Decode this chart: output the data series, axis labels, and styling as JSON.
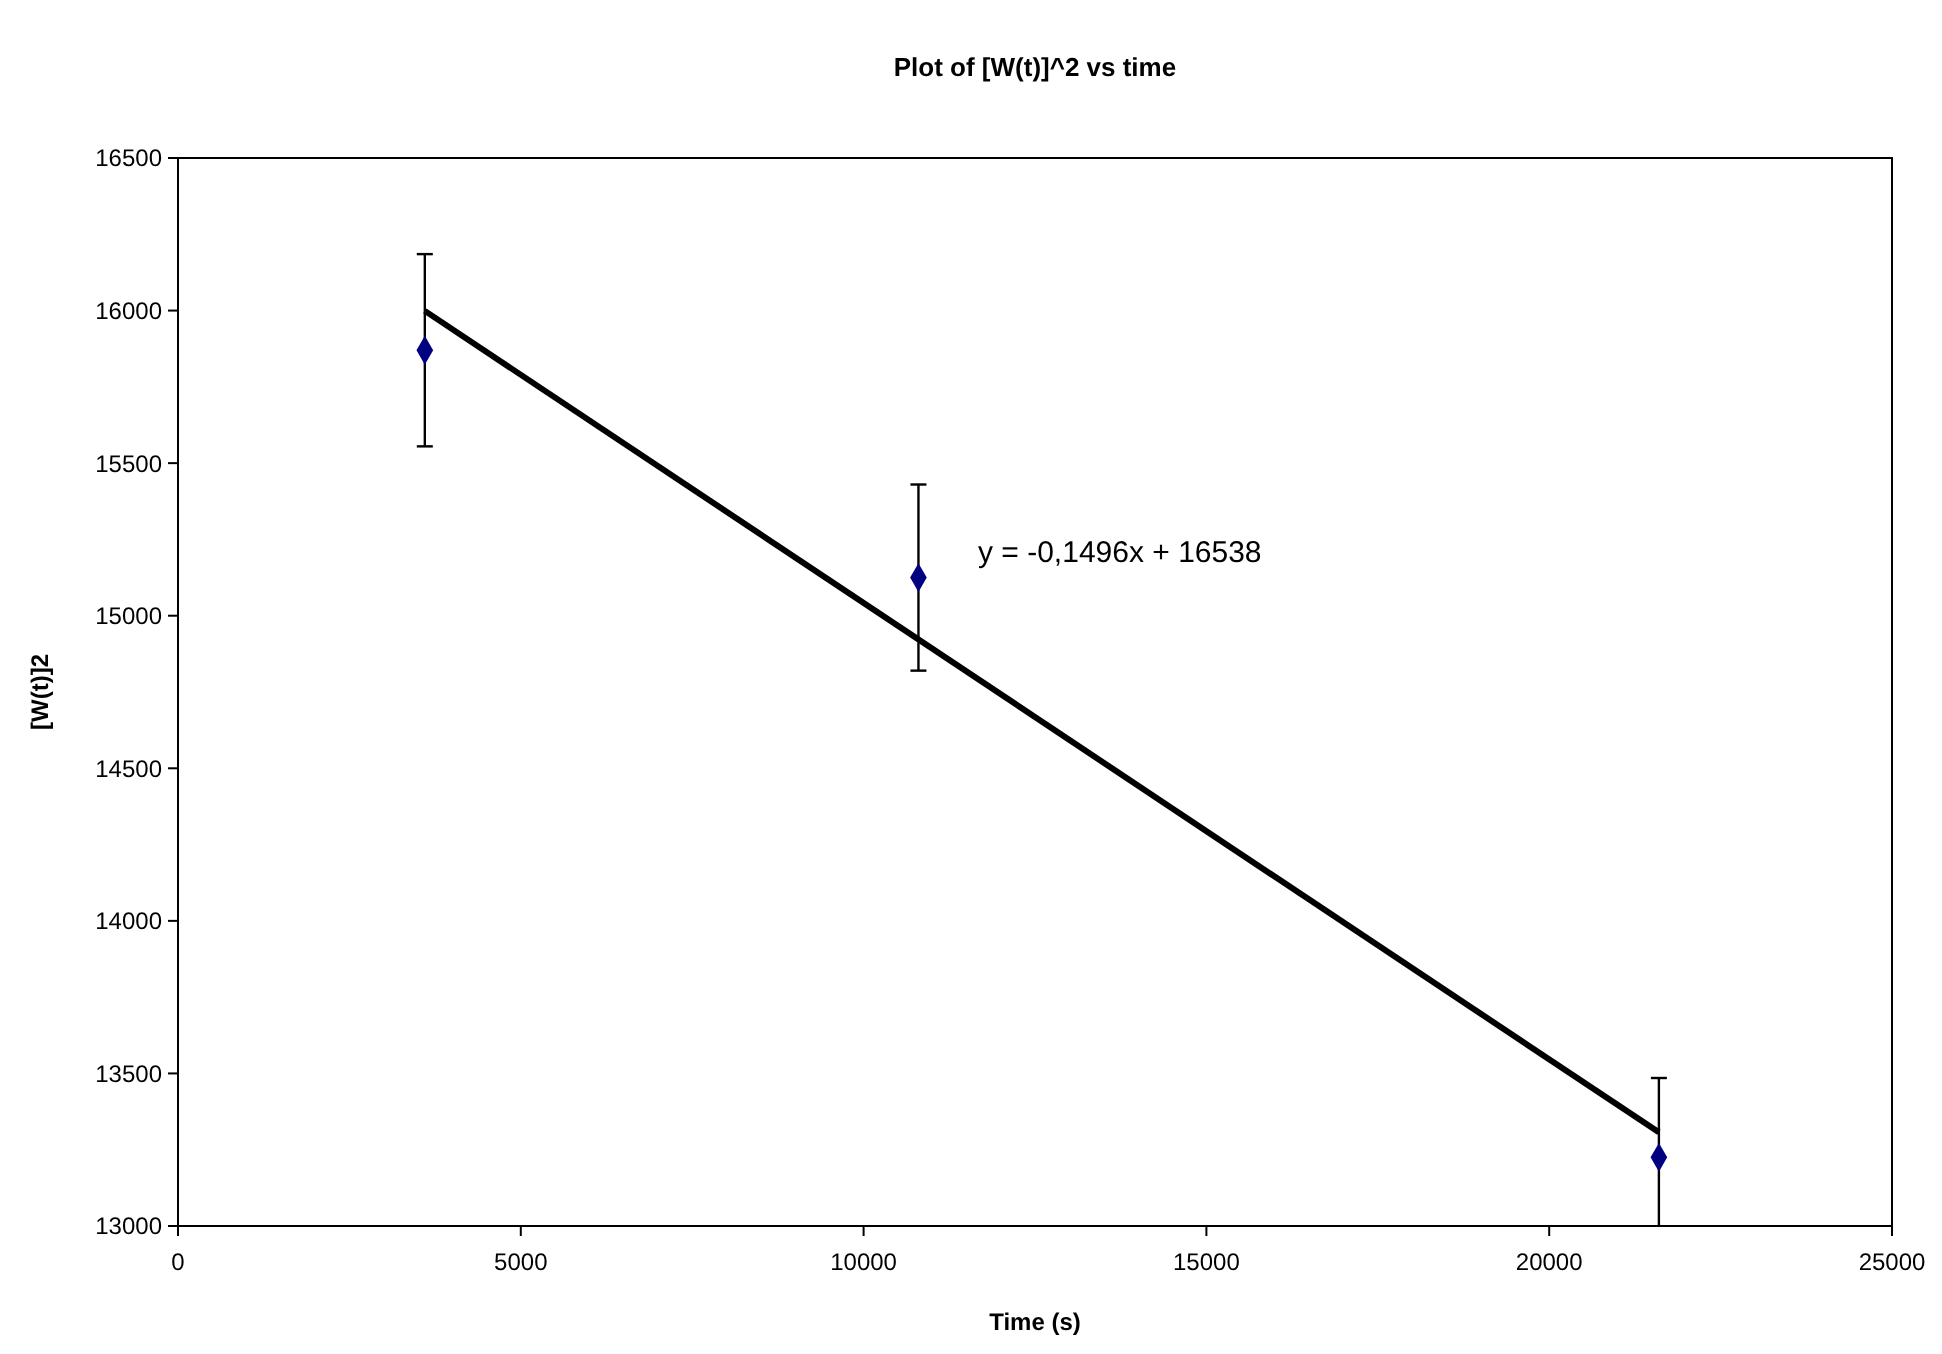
{
  "chart_data": {
    "type": "scatter",
    "title": "Plot of [W(t)]^2 vs time",
    "xlabel": "Time (s)",
    "ylabel": "[W(t)]2",
    "xlim": [
      0,
      25000
    ],
    "xticks": [
      0,
      5000,
      10000,
      15000,
      20000,
      25000
    ],
    "ylim": [
      13000,
      16500
    ],
    "yticks": [
      13000,
      13500,
      14000,
      14500,
      15000,
      15500,
      16000,
      16500
    ],
    "grid": false,
    "marker": "diamond",
    "series": [
      {
        "color": "#000080",
        "x": [
          3600,
          10800,
          21600
        ],
        "values": [
          15870,
          15125,
          13225
        ],
        "errors": [
          315,
          305,
          260
        ]
      },
      {
        "type": "line",
        "color": "#000000",
        "line_style": "solid",
        "marker": "none",
        "x": [
          3600,
          21600
        ],
        "values": [
          15999,
          13307
        ]
      }
    ],
    "annotations": [
      "y = -0,1496x + 16538"
    ]
  }
}
